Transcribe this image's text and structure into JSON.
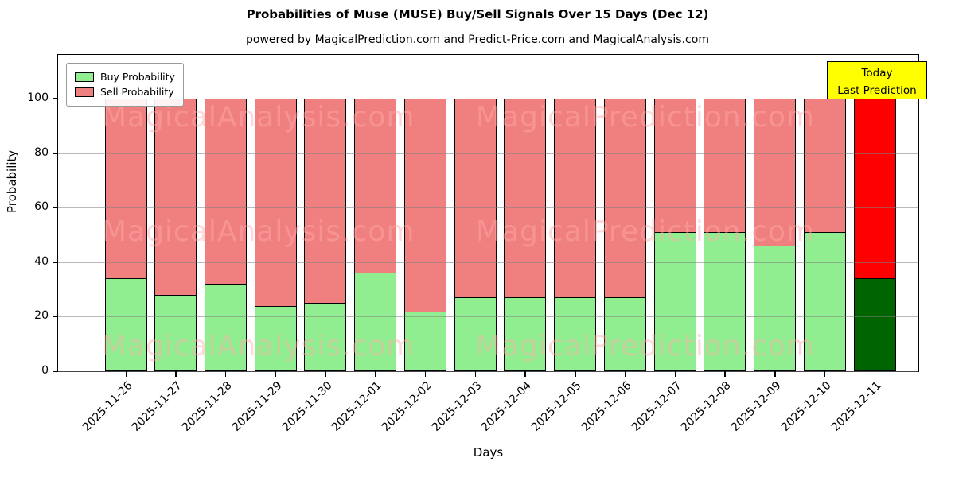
{
  "title": "Probabilities of Muse (MUSE) Buy/Sell Signals Over 15 Days (Dec 12)",
  "subtitle": "powered by MagicalPrediction.com and Predict-Price.com and MagicalAnalysis.com",
  "legend": {
    "buy_label": "Buy Probability",
    "sell_label": "Sell Probability"
  },
  "annotation_box": {
    "line1": "Today",
    "line2": "Last Prediction"
  },
  "watermarks": {
    "left": "MagicalAnalysis.com",
    "right": "MagicalPrediction.com"
  },
  "colors": {
    "buy": "#90ee90",
    "sell": "#f08080",
    "today_buy": "#006400",
    "today_sell": "#ff0000",
    "bar_edge": "#000000",
    "grid": "#808080",
    "dashed": "#7f7f7f",
    "today_box_bg": "#ffff00",
    "watermark": "rgba(255,170,170,0.45)"
  },
  "chart_data": {
    "type": "bar",
    "stacked": true,
    "title": "Probabilities of Muse (MUSE) Buy/Sell Signals Over 15 Days (Dec 12)",
    "xlabel": "Days",
    "ylabel": "Probability",
    "ylim": [
      0,
      116
    ],
    "yticks": [
      0,
      20,
      40,
      60,
      80,
      100
    ],
    "dashed_line_y": 110,
    "grid": true,
    "legend_position": "upper left",
    "categories": [
      "2025-11-26",
      "2025-11-27",
      "2025-11-28",
      "2025-11-29",
      "2025-11-30",
      "2025-12-01",
      "2025-12-02",
      "2025-12-03",
      "2025-12-04",
      "2025-12-05",
      "2025-12-06",
      "2025-12-07",
      "2025-12-08",
      "2025-12-09",
      "2025-12-10",
      "2025-12-11"
    ],
    "series": [
      {
        "name": "Buy Probability",
        "values": [
          34,
          28,
          32,
          24,
          25,
          36,
          22,
          27,
          27,
          27,
          27,
          51,
          51,
          46,
          51,
          34
        ]
      },
      {
        "name": "Sell Probability",
        "values": [
          66,
          72,
          68,
          76,
          75,
          64,
          78,
          73,
          73,
          73,
          73,
          49,
          49,
          54,
          49,
          66
        ]
      }
    ],
    "today_index": 15
  }
}
